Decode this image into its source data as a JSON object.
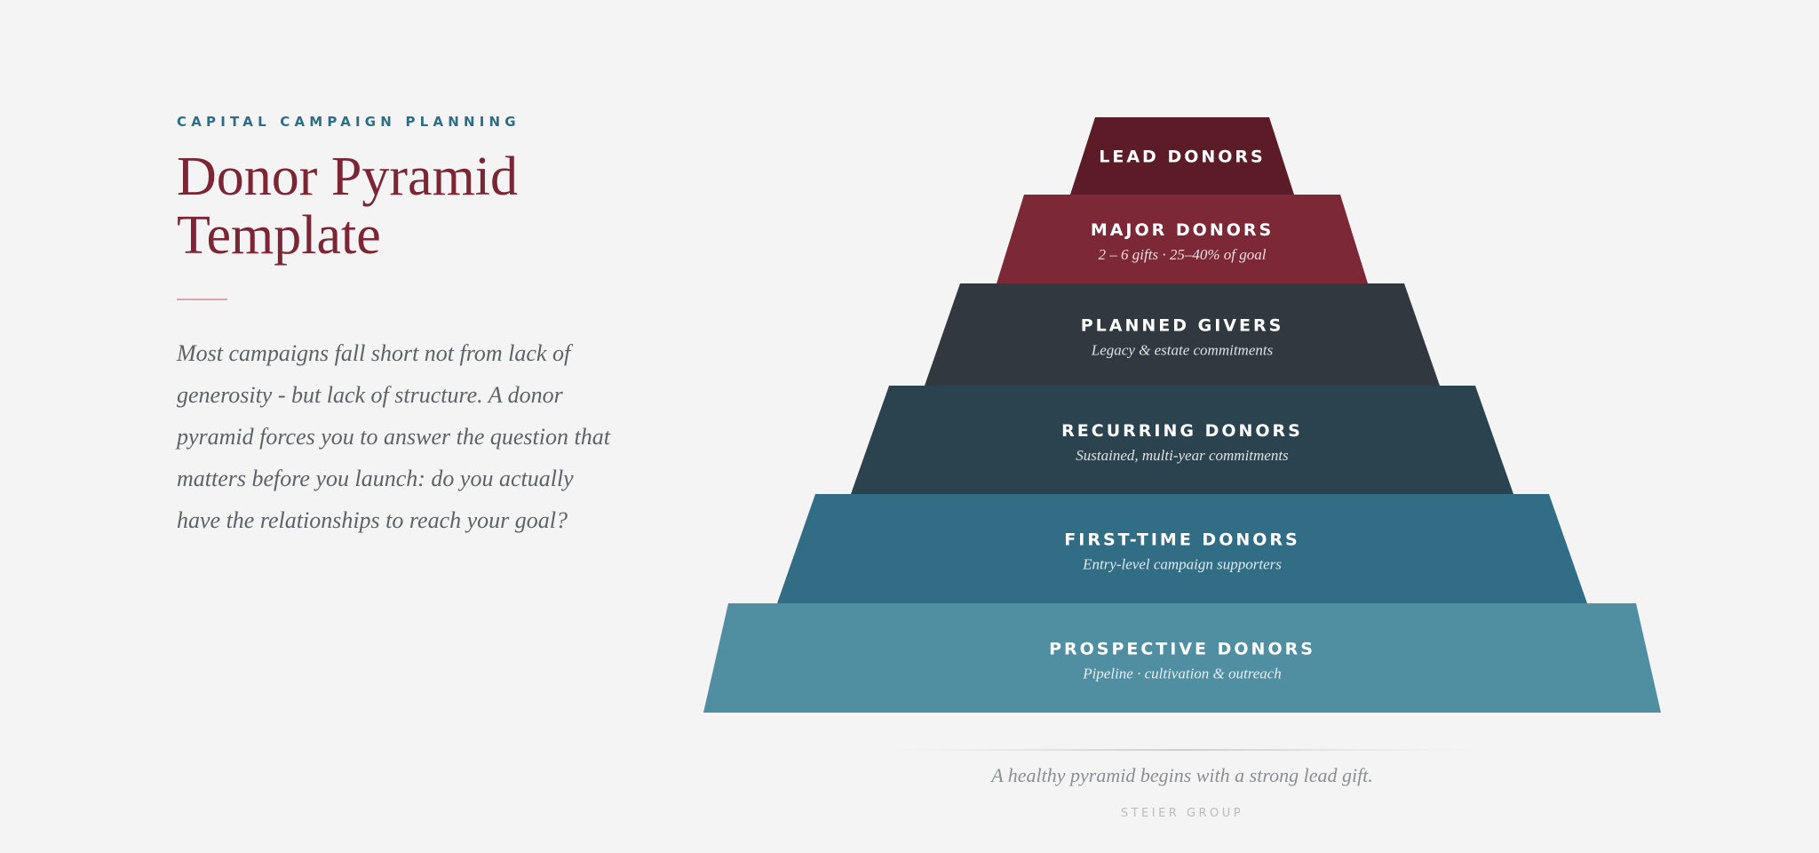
{
  "header": {
    "eyebrow": "CAPITAL CAMPAIGN PLANNING",
    "title_line1": "Donor Pyramid",
    "title_line2": "Template",
    "intro": "Most campaigns fall short not from lack of generosity - but lack of structure. A donor pyramid forces you to answer the question that matters before you launch: do you actually have the relationships to reach your goal?"
  },
  "pyramid": {
    "tiers": [
      {
        "label": "LEAD DONORS",
        "sub": "",
        "color": "#5b1c27"
      },
      {
        "label": "MAJOR DONORS",
        "sub": "2 – 6 gifts · 25–40% of goal",
        "color": "#7d2837"
      },
      {
        "label": "PLANNED GIVERS",
        "sub": "Legacy & estate commitments",
        "color": "#31383f"
      },
      {
        "label": "RECURRING DONORS",
        "sub": "Sustained, multi-year commitments",
        "color": "#2a434e"
      },
      {
        "label": "FIRST-TIME DONORS",
        "sub": "Entry-level campaign supporters",
        "color": "#316e85"
      },
      {
        "label": "PROSPECTIVE DONORS",
        "sub": "Pipeline · cultivation & outreach",
        "color": "#508ea2"
      }
    ]
  },
  "footer": {
    "caption": "A healthy pyramid begins with a strong lead gift.",
    "brand": "STEIER GROUP"
  }
}
